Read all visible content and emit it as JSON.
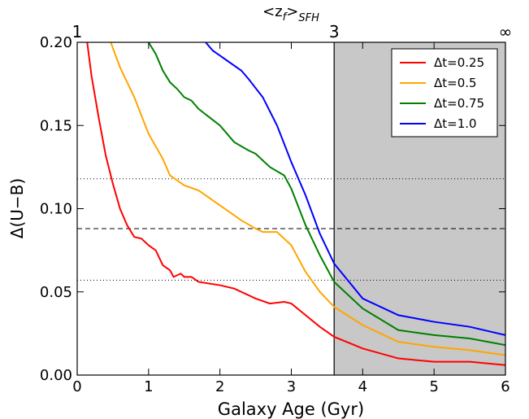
{
  "chart_data": {
    "type": "line",
    "xlabel": "Galaxy Age (Gyr)",
    "ylabel": "Δ(U−B)",
    "top_xlabel": [
      "<z",
      "f",
      ">",
      "SFH"
    ],
    "xlim": [
      0,
      6
    ],
    "ylim": [
      0,
      0.2
    ],
    "xticks": [
      0,
      1,
      2,
      3,
      4,
      5,
      6
    ],
    "yticks": [
      {
        "value": 0,
        "label": "0.00"
      },
      {
        "value": 0.05,
        "label": "0.05"
      },
      {
        "value": 0.1,
        "label": "0.10"
      },
      {
        "value": 0.15,
        "label": "0.15"
      },
      {
        "value": 0.2,
        "label": "0.20"
      }
    ],
    "top_xticks": [
      {
        "value": 0,
        "label": "1"
      },
      {
        "value": 3.6,
        "label": "3"
      },
      {
        "value": 6,
        "label": "∞"
      }
    ],
    "hlines": [
      {
        "y": 0.118,
        "style": "dotted"
      },
      {
        "y": 0.088,
        "style": "dashed"
      },
      {
        "y": 0.057,
        "style": "dotted"
      }
    ],
    "vline": 3.6,
    "shade_from": 3.6,
    "legend": "upper right",
    "series": [
      {
        "name": "Δt=0.25",
        "color": "#ff0000",
        "x": [
          0.14,
          0.2,
          0.3,
          0.4,
          0.5,
          0.6,
          0.7,
          0.8,
          0.9,
          1.0,
          1.1,
          1.2,
          1.3,
          1.35,
          1.45,
          1.5,
          1.6,
          1.7,
          2.0,
          2.2,
          2.5,
          2.7,
          2.9,
          3.0,
          3.2,
          3.4,
          3.6,
          4.0,
          4.5,
          5.0,
          5.5,
          6.0
        ],
        "values": [
          0.2,
          0.18,
          0.155,
          0.132,
          0.115,
          0.1,
          0.09,
          0.083,
          0.082,
          0.078,
          0.075,
          0.066,
          0.063,
          0.059,
          0.061,
          0.059,
          0.059,
          0.056,
          0.054,
          0.052,
          0.046,
          0.043,
          0.044,
          0.043,
          0.036,
          0.029,
          0.023,
          0.016,
          0.01,
          0.008,
          0.008,
          0.006
        ]
      },
      {
        "name": "Δt=0.5",
        "color": "#ffa500",
        "x": [
          0.47,
          0.6,
          0.8,
          1.0,
          1.2,
          1.3,
          1.4,
          1.5,
          1.7,
          2.0,
          2.3,
          2.5,
          2.6,
          2.8,
          3.0,
          3.2,
          3.4,
          3.6,
          4.0,
          4.5,
          5.0,
          5.5,
          6.0
        ],
        "values": [
          0.2,
          0.185,
          0.167,
          0.145,
          0.13,
          0.12,
          0.117,
          0.114,
          0.111,
          0.102,
          0.093,
          0.088,
          0.086,
          0.086,
          0.078,
          0.062,
          0.05,
          0.041,
          0.03,
          0.02,
          0.017,
          0.015,
          0.012
        ]
      },
      {
        "name": "Δt=0.75",
        "color": "#008000",
        "x": [
          1.0,
          1.1,
          1.2,
          1.3,
          1.4,
          1.5,
          1.6,
          1.7,
          2.0,
          2.2,
          2.4,
          2.5,
          2.7,
          2.9,
          3.0,
          3.2,
          3.4,
          3.6,
          4.0,
          4.5,
          5.0,
          5.5,
          6.0
        ],
        "values": [
          0.2,
          0.193,
          0.183,
          0.176,
          0.172,
          0.167,
          0.165,
          0.16,
          0.15,
          0.14,
          0.135,
          0.133,
          0.125,
          0.12,
          0.112,
          0.09,
          0.072,
          0.056,
          0.04,
          0.027,
          0.024,
          0.022,
          0.018
        ]
      },
      {
        "name": "Δt=1.0",
        "color": "#0000ff",
        "x": [
          1.8,
          1.9,
          2.0,
          2.1,
          2.3,
          2.4,
          2.6,
          2.8,
          3.0,
          3.2,
          3.4,
          3.6,
          4.0,
          4.5,
          5.0,
          5.5,
          6.0
        ],
        "values": [
          0.2,
          0.195,
          0.192,
          0.189,
          0.183,
          0.178,
          0.167,
          0.15,
          0.128,
          0.108,
          0.085,
          0.067,
          0.046,
          0.036,
          0.032,
          0.029,
          0.024
        ]
      }
    ]
  }
}
